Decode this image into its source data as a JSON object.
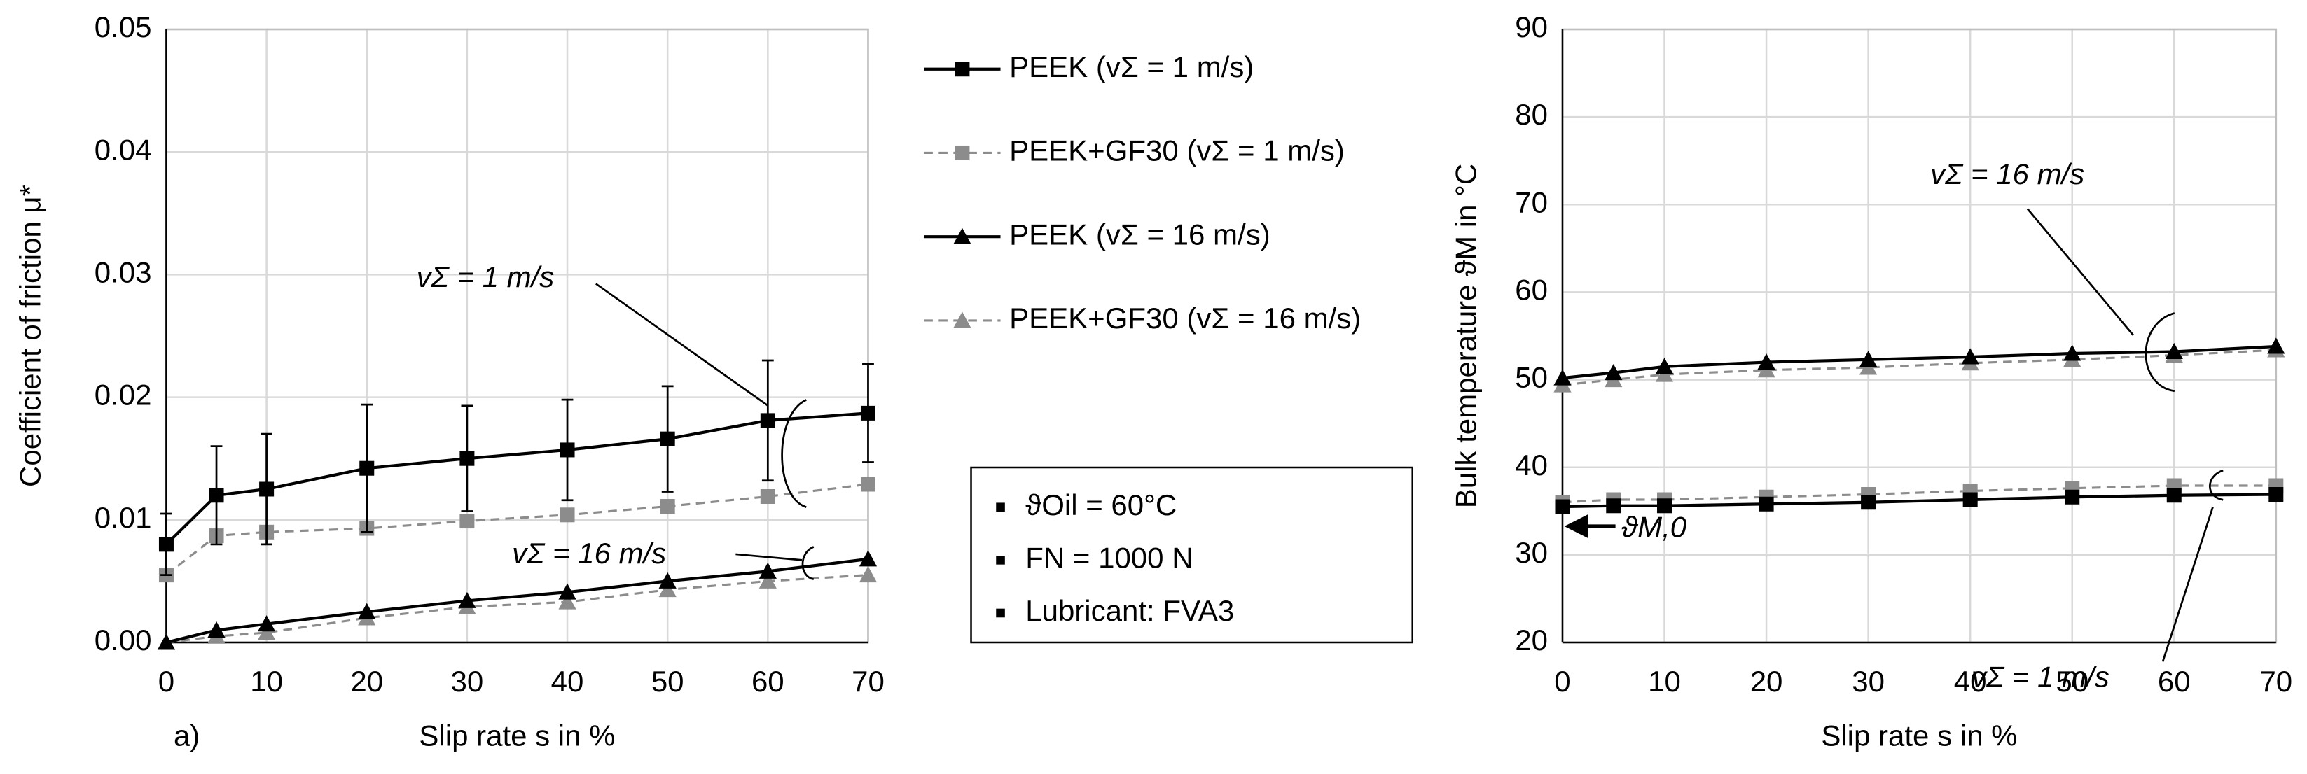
{
  "panel_label": "a)",
  "conditions": [
    "ϑOil = 60°C",
    "FN = 1000 N",
    "Lubricant: FVA3"
  ],
  "chart_data": [
    {
      "type": "line",
      "x_label": "Slip rate s in %",
      "y_label": "Coefficient of friction μ*",
      "x": [
        0,
        5,
        10,
        20,
        30,
        40,
        50,
        60,
        70
      ],
      "xlim": [
        0,
        70
      ],
      "xticks": [
        0,
        10,
        20,
        30,
        40,
        50,
        60,
        70
      ],
      "ylim": [
        0,
        0.05
      ],
      "yticks": [
        {
          "value": 0,
          "label": "0.00"
        },
        0.01,
        0.02,
        0.03,
        0.04,
        0.05
      ],
      "grid": true,
      "annotations": [
        "vΣ = 1 m/s",
        "vΣ = 16 m/s"
      ],
      "series": [
        {
          "name": "PEEK (vΣ = 1 m/s)",
          "color": "#000000",
          "marker": "square",
          "dashed": false,
          "values": [
            0.008,
            0.012,
            0.0125,
            0.0142,
            0.015,
            0.0157,
            0.0166,
            0.0181,
            0.0187
          ],
          "errors": [
            0.0025,
            0.004,
            0.0045,
            0.0052,
            0.0043,
            0.0041,
            0.0043,
            0.0049,
            0.004
          ]
        },
        {
          "name": "PEEK+GF30  (vΣ = 1 m/s)",
          "color": "#8c8c8c",
          "marker": "square",
          "dashed": true,
          "values": [
            0.0055,
            0.0087,
            0.009,
            0.0093,
            0.0099,
            0.0104,
            0.0111,
            0.0119,
            0.0129
          ]
        },
        {
          "name": "PEEK  (vΣ = 16 m/s)",
          "color": "#000000",
          "marker": "triangle",
          "dashed": false,
          "values": [
            0,
            0.001,
            0.0015,
            0.0025,
            0.0034,
            0.0041,
            0.005,
            0.0058,
            0.0068
          ]
        },
        {
          "name": "PEEK+GF30 (vΣ = 16 m/s)",
          "color": "#8c8c8c",
          "marker": "triangle",
          "dashed": true,
          "values": [
            0,
            0.0005,
            0.0008,
            0.002,
            0.0029,
            0.0033,
            0.0043,
            0.005,
            0.0055
          ]
        }
      ]
    },
    {
      "type": "line",
      "x_label": "Slip rate s in %",
      "y_label": "Bulk temperature ϑM in °C",
      "x": [
        0,
        5,
        10,
        20,
        30,
        40,
        50,
        60,
        70
      ],
      "xlim": [
        0,
        70
      ],
      "xticks": [
        0,
        10,
        20,
        30,
        40,
        50,
        60,
        70
      ],
      "ylim": [
        20,
        90
      ],
      "yticks": [
        20,
        30,
        40,
        50,
        60,
        70,
        80,
        90
      ],
      "grid": true,
      "annotations": [
        "vΣ = 16 m/s",
        "vΣ = 1 m/s",
        "ϑM,0"
      ],
      "series": [
        {
          "color": "#000000",
          "marker": "square",
          "dashed": false,
          "values": [
            35.5,
            35.6,
            35.6,
            35.8,
            36,
            36.3,
            36.6,
            36.8,
            36.9
          ]
        },
        {
          "color": "#8c8c8c",
          "marker": "square",
          "dashed": true,
          "values": [
            36,
            36.3,
            36.3,
            36.6,
            36.9,
            37.3,
            37.6,
            37.9,
            37.9
          ]
        },
        {
          "color": "#000000",
          "marker": "triangle",
          "dashed": false,
          "values": [
            50.2,
            50.8,
            51.5,
            52,
            52.3,
            52.6,
            53,
            53.2,
            53.8
          ]
        },
        {
          "color": "#8c8c8c",
          "marker": "triangle",
          "dashed": true,
          "values": [
            49.4,
            50,
            50.6,
            51.1,
            51.4,
            51.9,
            52.3,
            52.8,
            53.4
          ]
        }
      ]
    }
  ]
}
